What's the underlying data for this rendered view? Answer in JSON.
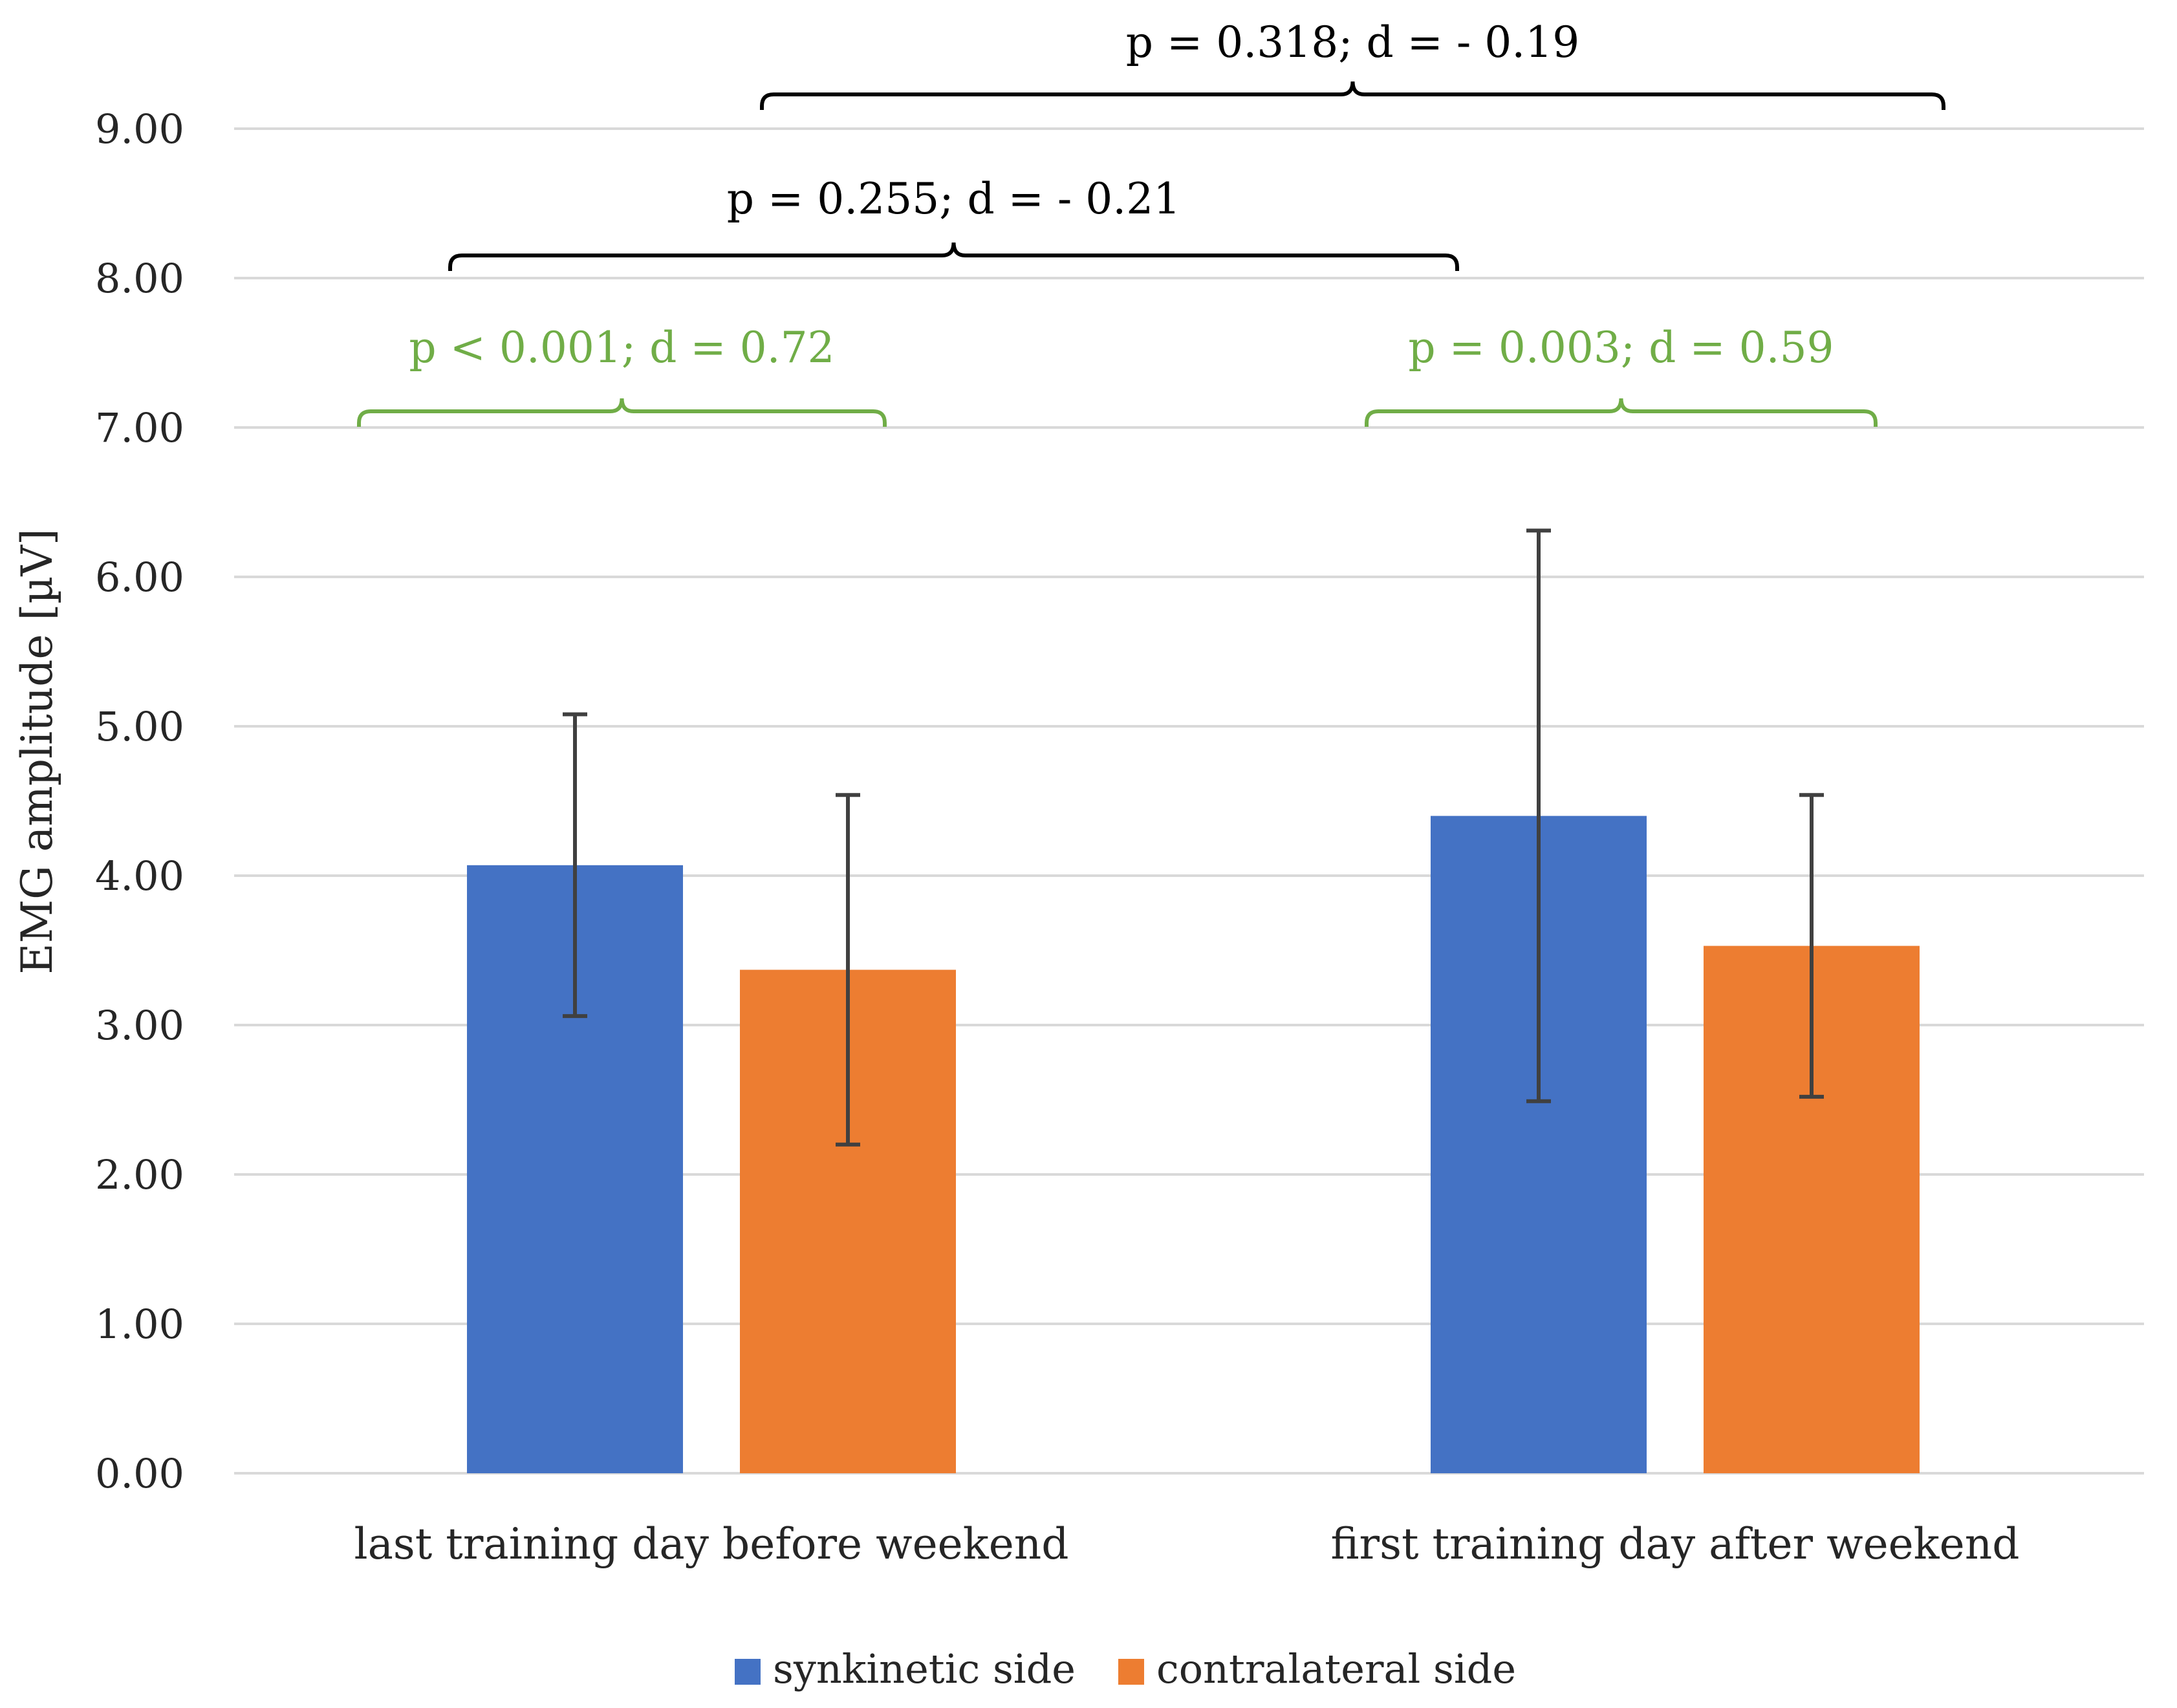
{
  "chart_data": {
    "type": "bar",
    "title": "",
    "xlabel": "",
    "ylabel": "EMG amplitude [µV]",
    "ylim": [
      0,
      9
    ],
    "ytick_values": [
      0,
      1,
      2,
      3,
      4,
      5,
      6,
      7,
      8,
      9
    ],
    "ytick_labels": [
      "0.00",
      "1.00",
      "2.00",
      "3.00",
      "4.00",
      "5.00",
      "6.00",
      "7.00",
      "8.00",
      "9.00"
    ],
    "grid": true,
    "legend_position": "bottom-center",
    "categories": [
      "last training day before weekend",
      "first training day after weekend"
    ],
    "series": [
      {
        "name": "synkinetic side",
        "color": "#4472C4",
        "values": [
          4.07,
          4.4
        ],
        "err_low": [
          3.06,
          2.49
        ],
        "err_high": [
          5.08,
          6.31
        ]
      },
      {
        "name": "contralateral side",
        "color": "#ED7D31",
        "values": [
          3.37,
          3.53
        ],
        "err_low": [
          2.2,
          2.52
        ],
        "err_high": [
          4.54,
          4.54
        ]
      }
    ],
    "annotations": [
      {
        "text": "p < 0.001; d = 0.72",
        "color": "#70AD47",
        "from": [
          0,
          0
        ],
        "to": [
          0,
          1
        ]
      },
      {
        "text": "p = 0.003; d = 0.59",
        "color": "#70AD47",
        "from": [
          1,
          0
        ],
        "to": [
          1,
          1
        ]
      },
      {
        "text": "p = 0.255; d = - 0.21",
        "color": "#000000",
        "from": [
          0,
          0
        ],
        "to": [
          1,
          0
        ]
      },
      {
        "text": "p = 0.318; d = - 0.19",
        "color": "#000000",
        "from": [
          0,
          1
        ],
        "to": [
          1,
          1
        ]
      }
    ],
    "gridline_color": "#D9D9D9",
    "errorbar_color": "#404040",
    "text_color": "#262626"
  }
}
